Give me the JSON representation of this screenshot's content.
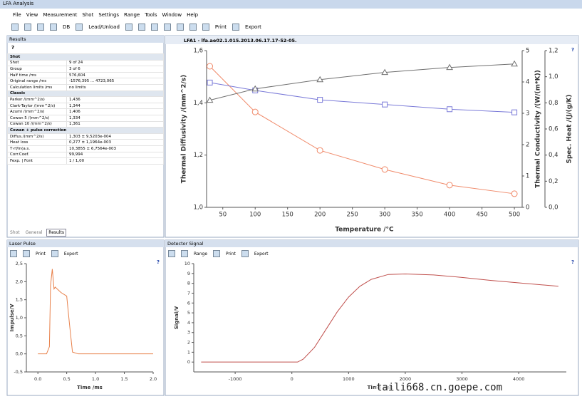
{
  "window": {
    "title": "LFA Analysis"
  },
  "menu": [
    "File",
    "View",
    "Measurement",
    "Shot",
    "Settings",
    "Range",
    "Tools",
    "Window",
    "Help"
  ],
  "toolbar": [
    "DB",
    "Lead/Unload",
    "Print",
    "Export"
  ],
  "help": "?",
  "results": {
    "title": "Results",
    "sections": [
      {
        "title": "Shot",
        "rows": [
          [
            "Shot",
            "9 of 24"
          ],
          [
            "Group",
            "3 of 6"
          ],
          [
            "Half time /ms",
            "576,604"
          ],
          [
            "Original range /ms",
            "-1576,395 ... 4723,065"
          ],
          [
            "Calculation limits /ms",
            "no limits"
          ]
        ]
      },
      {
        "title": "Classic",
        "rows": [
          [
            "Parker /(mm^2/s)",
            "1,436"
          ],
          [
            "Clark-Taylor /(mm^2/s)",
            "1,344"
          ],
          [
            "Azumi /(mm^2/s)",
            "1,406"
          ],
          [
            "Cowan 5 /(mm^2/s)",
            "1,334"
          ],
          [
            "Cowan 10 /(mm^2/s)",
            "1,361"
          ]
        ]
      },
      {
        "title": "Cowan + pulse correction",
        "rows": [
          [
            "Diffus./(mm^2/s)",
            "1,303 ± 9,5203e-004"
          ],
          [
            "Heat loss",
            "0,277 ± 1,1964e-003"
          ],
          [
            "T·rf/ln(a.s.",
            "10,3855 ± 6,7564e-003"
          ],
          [
            "Corr.Coef.",
            "99,994"
          ],
          [
            "Fexp. | Font",
            "1 / 1,00"
          ]
        ]
      }
    ],
    "tabs": [
      "Shot",
      "General",
      "Results"
    ]
  },
  "document_tab": "LFA1 - lfa.ae02.1.015.2013.06.17.17-52-05.",
  "panels": {
    "laser": {
      "title": "Laser Pulse",
      "toolbar": [
        "Print",
        "Export"
      ]
    },
    "detector": {
      "title": "Detector Signal",
      "toolbar": [
        "Range",
        "Print",
        "Export"
      ]
    }
  },
  "watermark": "taili668.cn.goepe.com",
  "chart_data": [
    {
      "type": "line",
      "xlabel": "Temperature /°C",
      "ylabel": "Thermal Diffusivity /(mm^2/s)",
      "y2label": "Thermal Conductivity /(W/(m*K))",
      "y3label": "Spec. Heat /(J/(g/K)",
      "x": [
        30,
        100,
        200,
        300,
        400,
        500
      ],
      "xlim": [
        25,
        512
      ],
      "xticks": [
        50,
        100,
        150,
        200,
        250,
        300,
        350,
        400,
        450,
        500
      ],
      "ylim": [
        1.0,
        1.6
      ],
      "yticks": [
        {
          "value": 1.0,
          "label": "1,0"
        },
        {
          "value": 1.2,
          "label": "1,2"
        },
        {
          "value": 1.4,
          "label": "1,4"
        },
        {
          "value": 1.6,
          "label": "1,6"
        }
      ],
      "y2lim": [
        0,
        5
      ],
      "y2ticks": [
        0,
        1,
        2,
        3,
        4,
        5
      ],
      "y3lim": [
        0,
        1.2
      ],
      "y3ticks": [
        {
          "value": 0,
          "label": "0,0"
        },
        {
          "value": 0.2,
          "label": "0,2"
        },
        {
          "value": 0.4,
          "label": "0,4"
        },
        {
          "value": 0.6,
          "label": "0,6"
        },
        {
          "value": 0.8,
          "label": "0,8"
        },
        {
          "value": 1.0,
          "label": "1,0"
        },
        {
          "value": 1.2,
          "label": "1,2"
        }
      ],
      "series": [
        {
          "color": "#f08a6a",
          "marker": "circle",
          "axis": "y",
          "values": [
            1.54,
            1.365,
            1.218,
            1.145,
            1.085,
            1.052
          ]
        },
        {
          "color": "#7a7ad8",
          "marker": "square",
          "axis": "y2",
          "values": [
            3.98,
            3.73,
            3.43,
            3.28,
            3.13,
            3.03
          ]
        },
        {
          "color": "#707070",
          "marker": "triangle",
          "axis": "y3",
          "values": [
            0.82,
            0.907,
            0.978,
            1.033,
            1.071,
            1.098
          ]
        }
      ]
    },
    {
      "type": "line",
      "xlabel": "Time /ms",
      "ylabel": "Impulse/V",
      "x": [
        0,
        0.15,
        0.2,
        0.22,
        0.25,
        0.28,
        0.3,
        0.4,
        0.5,
        0.55,
        0.6,
        0.7,
        1.0,
        1.5,
        2.0
      ],
      "xlim": [
        -0.2,
        2.0
      ],
      "xticks": [
        {
          "value": 0,
          "label": "0.0"
        },
        0.5,
        {
          "value": 1,
          "label": "1.0"
        },
        1.5,
        {
          "value": 2,
          "label": "2.0"
        }
      ],
      "ylim": [
        -0.5,
        2.5
      ],
      "yticks": [
        {
          "value": -0.5,
          "label": "-0,5"
        },
        {
          "value": 0,
          "label": "0,0"
        },
        {
          "value": 0.5,
          "label": "0,5"
        },
        {
          "value": 1,
          "label": "1,0"
        },
        {
          "value": 1.5,
          "label": "1,5"
        },
        {
          "value": 2,
          "label": "2,0"
        },
        {
          "value": 2.5,
          "label": "2,5"
        }
      ],
      "series": [
        {
          "color": "#e8804a",
          "values": [
            0,
            0,
            0.2,
            1.9,
            2.35,
            1.8,
            1.85,
            1.7,
            1.6,
            0.8,
            0.05,
            0,
            0,
            0,
            0
          ]
        }
      ]
    },
    {
      "type": "line",
      "xlabel": "Time /ms",
      "ylabel": "Signal/V",
      "x": [
        -1600,
        100,
        200,
        400,
        600,
        800,
        1000,
        1200,
        1400,
        1700,
        2000,
        2500,
        3000,
        3500,
        4000,
        4700
      ],
      "xlim": [
        -1730,
        4840
      ],
      "xticks": [
        -1000,
        0,
        1000,
        2000,
        3000,
        4000
      ],
      "ylim": [
        -1,
        10
      ],
      "yticks": [
        0,
        1,
        2,
        3,
        4,
        5,
        6,
        7,
        8,
        9,
        10
      ],
      "series": [
        {
          "color": "#c0504d",
          "values": [
            0,
            0,
            0.3,
            1.5,
            3.3,
            5.1,
            6.6,
            7.7,
            8.4,
            8.9,
            8.95,
            8.85,
            8.6,
            8.3,
            8.05,
            7.7
          ]
        }
      ]
    }
  ]
}
